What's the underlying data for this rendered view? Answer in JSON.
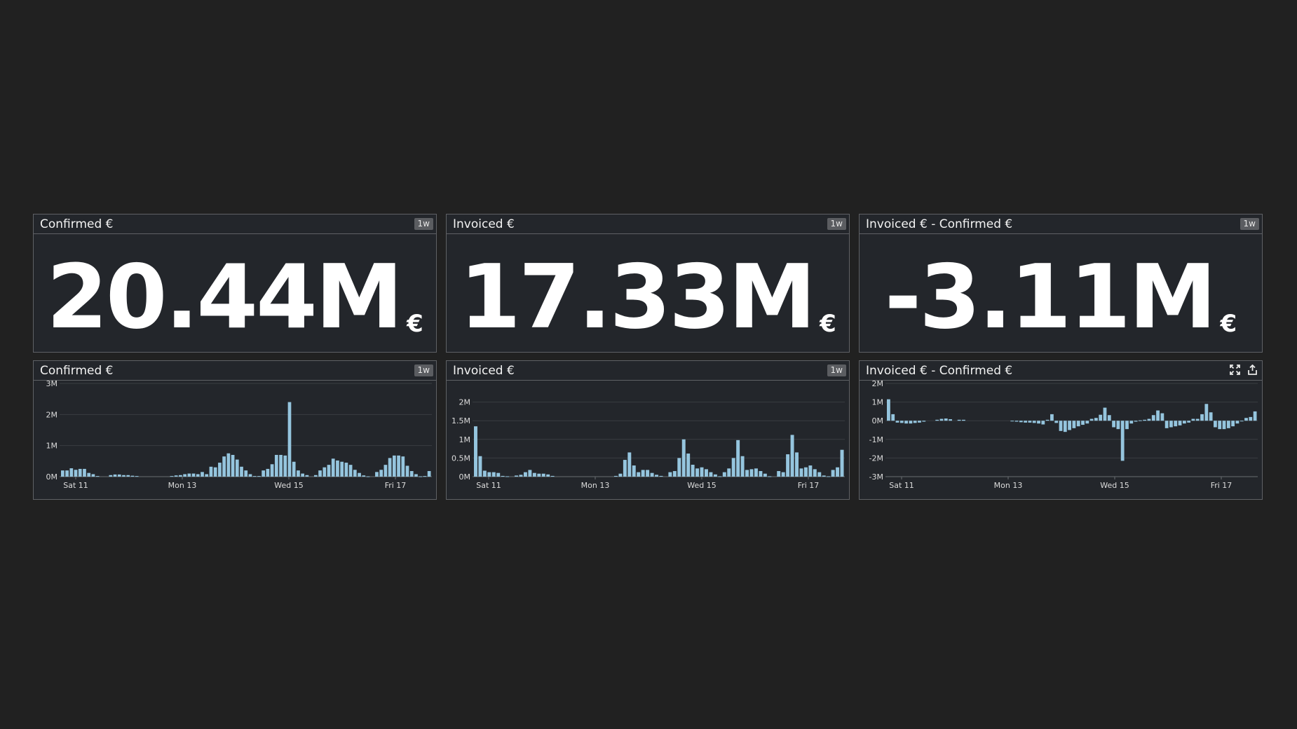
{
  "colors": {
    "background": "#212121",
    "panel": "#23262b",
    "border": "#5f6165",
    "bar": "#95c5de",
    "badge": "#5b5d61"
  },
  "query_values": [
    {
      "title": "Confirmed €",
      "badge": "1w",
      "value": "20.44M",
      "unit": "€"
    },
    {
      "title": "Invoiced €",
      "badge": "1w",
      "value": "17.33M",
      "unit": "€"
    },
    {
      "title": "Invoiced € - Confirmed €",
      "badge": "1w",
      "value": "-3.11M",
      "unit": "€"
    }
  ],
  "timeseries": [
    {
      "title": "Confirmed €",
      "badge": "1w",
      "icons": []
    },
    {
      "title": "Invoiced €",
      "badge": "1w",
      "icons": []
    },
    {
      "title": "Invoiced € - Confirmed €",
      "badge": "",
      "icons": [
        "expand-icon",
        "export-icon"
      ]
    }
  ],
  "chart_data": [
    {
      "type": "bar",
      "x_ticks": [
        "Sat 11",
        "Mon 13",
        "Wed 15",
        "Fri 17"
      ],
      "y_ticks": [
        "0M",
        "1M",
        "2M",
        "3M"
      ],
      "ylim": [
        0,
        3
      ],
      "grid": true,
      "series": [
        {
          "values": [
            0.2,
            0.2,
            0.27,
            0.22,
            0.25,
            0.25,
            0.12,
            0.08,
            0.02,
            0,
            0,
            0.05,
            0.07,
            0.07,
            0.05,
            0.05,
            0.03,
            0.02,
            0,
            0,
            0,
            0,
            0,
            0,
            0,
            0.02,
            0.04,
            0.05,
            0.08,
            0.1,
            0.1,
            0.08,
            0.15,
            0.08,
            0.32,
            0.3,
            0.45,
            0.65,
            0.75,
            0.7,
            0.55,
            0.32,
            0.2,
            0.08,
            0.02,
            0.02,
            0.2,
            0.25,
            0.4,
            0.7,
            0.7,
            0.68,
            2.4,
            0.48,
            0.2,
            0.1,
            0.05,
            0,
            0.05,
            0.2,
            0.3,
            0.38,
            0.58,
            0.52,
            0.48,
            0.45,
            0.38,
            0.22,
            0.12,
            0.04,
            0.01,
            0,
            0.15,
            0.22,
            0.38,
            0.6,
            0.68,
            0.68,
            0.65,
            0.35,
            0.18,
            0.08,
            0.01,
            0.02,
            0.18
          ]
        }
      ]
    },
    {
      "type": "bar",
      "x_ticks": [
        "Sat 11",
        "Mon 13",
        "Wed 15",
        "Fri 17"
      ],
      "y_ticks": [
        "0M",
        "0.5M",
        "1M",
        "1.5M",
        "2M"
      ],
      "ylim": [
        0,
        2.5
      ],
      "grid": true,
      "series": [
        {
          "values": [
            1.35,
            0.55,
            0.16,
            0.12,
            0.12,
            0.1,
            0.02,
            0.01,
            0,
            0.03,
            0.05,
            0.12,
            0.18,
            0.1,
            0.08,
            0.08,
            0.06,
            0.02,
            0,
            0,
            0,
            0,
            0,
            0,
            0,
            0,
            0,
            0,
            0,
            0,
            0,
            0.02,
            0.08,
            0.45,
            0.65,
            0.3,
            0.12,
            0.18,
            0.18,
            0.1,
            0.05,
            0.02,
            0,
            0.12,
            0.15,
            0.5,
            1.0,
            0.62,
            0.32,
            0.22,
            0.25,
            0.2,
            0.12,
            0.06,
            0.01,
            0.12,
            0.22,
            0.5,
            0.98,
            0.55,
            0.18,
            0.2,
            0.22,
            0.15,
            0.08,
            0.01,
            0,
            0.15,
            0.12,
            0.6,
            1.12,
            0.65,
            0.22,
            0.25,
            0.3,
            0.2,
            0.12,
            0.03,
            0.01,
            0.18,
            0.25,
            0.72
          ]
        }
      ]
    },
    {
      "type": "bar",
      "x_ticks": [
        "Sat 11",
        "Mon 13",
        "Wed 15",
        "Fri 17"
      ],
      "y_ticks": [
        "-3M",
        "-2M",
        "-1M",
        "0M",
        "1M",
        "2M"
      ],
      "ylim": [
        -3,
        2
      ],
      "grid": true,
      "series": [
        {
          "values": [
            1.15,
            0.35,
            -0.1,
            -0.12,
            -0.15,
            -0.15,
            -0.12,
            -0.1,
            -0.05,
            0,
            0,
            0.05,
            0.1,
            0.12,
            0.08,
            0,
            0.05,
            0.05,
            0,
            0,
            0,
            0,
            0,
            0,
            0,
            0,
            0,
            0,
            -0.02,
            -0.05,
            -0.08,
            -0.1,
            -0.1,
            -0.12,
            -0.15,
            -0.2,
            0.05,
            0.35,
            -0.12,
            -0.55,
            -0.6,
            -0.5,
            -0.4,
            -0.3,
            -0.22,
            -0.15,
            0.1,
            0.15,
            0.32,
            0.7,
            0.3,
            -0.35,
            -0.45,
            -2.15,
            -0.45,
            -0.15,
            -0.05,
            0.02,
            0.05,
            0.1,
            0.3,
            0.55,
            0.4,
            -0.4,
            -0.35,
            -0.3,
            -0.25,
            -0.15,
            -0.1,
            0.1,
            0.1,
            0.35,
            0.9,
            0.45,
            -0.35,
            -0.45,
            -0.45,
            -0.4,
            -0.3,
            -0.15,
            -0.02,
            0.15,
            0.2,
            0.5
          ]
        }
      ]
    }
  ]
}
